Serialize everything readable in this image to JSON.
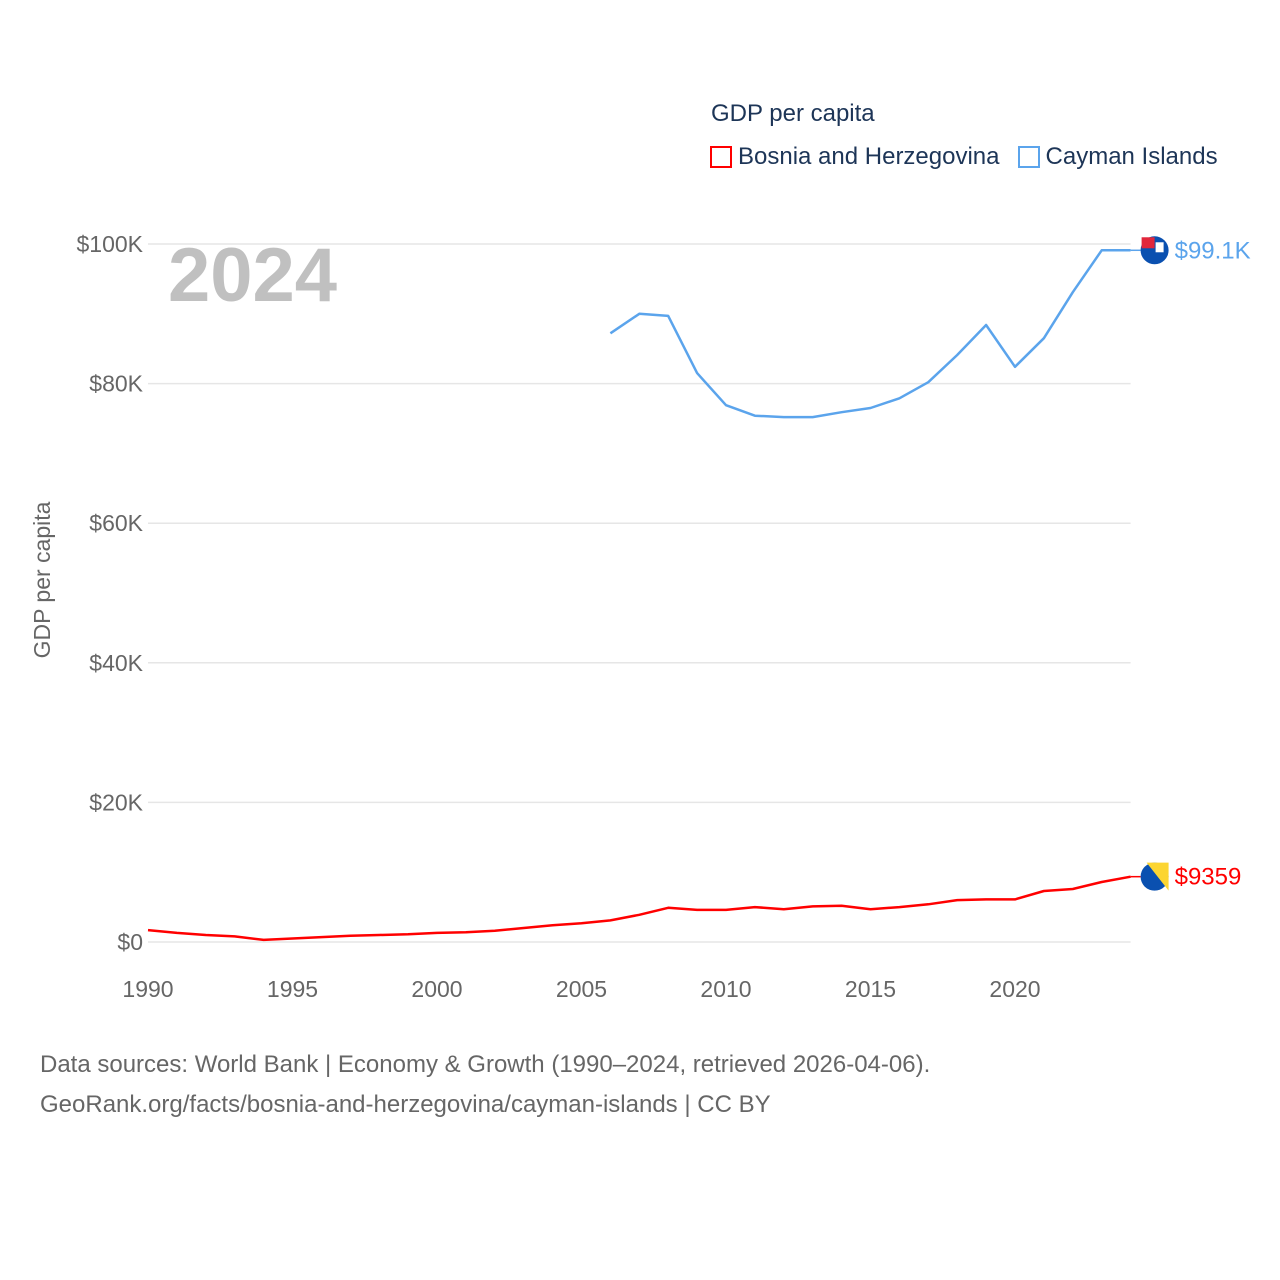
{
  "chart_data": {
    "type": "line",
    "title": "GDP per capita",
    "year_label": "2024",
    "xlabel": "",
    "ylabel": "GDP per capita",
    "xlim": [
      1990,
      2024
    ],
    "ylim": [
      0,
      100000
    ],
    "x_ticks": [
      1990,
      1995,
      2000,
      2005,
      2010,
      2015,
      2020
    ],
    "x_tick_labels": [
      "1990",
      "1995",
      "2000",
      "2005",
      "2010",
      "2015",
      "2020"
    ],
    "y_ticks": [
      0,
      20000,
      40000,
      60000,
      80000,
      100000
    ],
    "y_tick_labels": [
      "$0",
      "$20K",
      "$40K",
      "$60K",
      "$80K",
      "$100K"
    ],
    "grid": true,
    "legend_placement": "top-right",
    "series": [
      {
        "name": "Bosnia and Herzegovina",
        "color": "#ff0000",
        "end_label": "$9359",
        "flag_icon": "bosnia-flag-icon",
        "x": [
          1990,
          1991,
          1992,
          1993,
          1994,
          1995,
          1996,
          1997,
          1998,
          1999,
          2000,
          2001,
          2002,
          2003,
          2004,
          2005,
          2006,
          2007,
          2008,
          2009,
          2010,
          2011,
          2012,
          2013,
          2014,
          2015,
          2016,
          2017,
          2018,
          2019,
          2020,
          2021,
          2022,
          2023,
          2024
        ],
        "values": [
          1700,
          1300,
          1000,
          800,
          300,
          500,
          700,
          900,
          1000,
          1100,
          1300,
          1400,
          1600,
          2000,
          2400,
          2700,
          3100,
          3900,
          4900,
          4600,
          4600,
          5000,
          4700,
          5100,
          5200,
          4700,
          5000,
          5400,
          6000,
          6100,
          6100,
          7300,
          7600,
          8600,
          9359
        ]
      },
      {
        "name": "Cayman Islands",
        "color": "#5ba4ec",
        "end_label": "$99.1K",
        "flag_icon": "cayman-flag-icon",
        "x": [
          2006,
          2007,
          2008,
          2009,
          2010,
          2011,
          2012,
          2013,
          2014,
          2015,
          2016,
          2017,
          2018,
          2019,
          2020,
          2021,
          2022,
          2023,
          2024
        ],
        "values": [
          87200,
          90000,
          89700,
          81500,
          76900,
          75400,
          75200,
          75200,
          75900,
          76500,
          77900,
          80200,
          84100,
          88400,
          82400,
          86500,
          93100,
          99100,
          99100
        ]
      }
    ]
  },
  "footer": {
    "line1": "Data sources: World Bank | Economy & Growth (1990–2024, retrieved 2026-04-06).",
    "line2": "GeoRank.org/facts/bosnia-and-herzegovina/cayman-islands | CC BY"
  }
}
